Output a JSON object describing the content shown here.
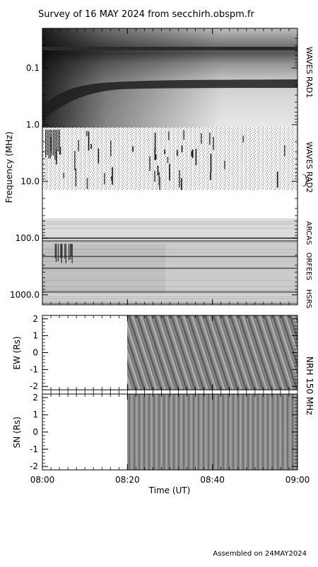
{
  "chart_data": {
    "type": "heatmap",
    "title": "Survey of 16 MAY 2024 from secchirh.obspm.fr",
    "footer": "Assembled on 24MAY2024",
    "spectrogram": {
      "ylabel": "Frequency (MHz)",
      "scale": "log",
      "ylim": [
        0.02,
        1500
      ],
      "yticks": [
        0.1,
        1.0,
        10.0,
        100.0,
        1000.0
      ],
      "ytick_labels": [
        "0.1",
        "1.0",
        "10.0",
        "100.0",
        "1000.0"
      ],
      "instruments": [
        {
          "name": "WAVES RAD1",
          "freq_range": [
            0.02,
            1.0
          ]
        },
        {
          "name": "WAVES RAD2",
          "freq_range": [
            1.0,
            14.0
          ]
        },
        {
          "name": "ARCAS",
          "freq_range": [
            40.0,
            100.0
          ]
        },
        {
          "name": "ORFEES",
          "freq_range": [
            100.0,
            1000.0
          ]
        },
        {
          "name": "HSRS",
          "freq_range": [
            1000.0,
            1500.0
          ]
        }
      ]
    },
    "nrh": {
      "label": "NRH 150 MHz",
      "panels": [
        {
          "ylabel": "EW (Rs)",
          "ylim": [
            -2.2,
            2.2
          ],
          "yticks": [
            2,
            1,
            0,
            -1,
            -2
          ],
          "ytick_labels": [
            "2",
            "1",
            "0",
            "-1",
            "-2"
          ]
        },
        {
          "ylabel": "SN (Rs)",
          "ylim": [
            -2.2,
            2.2
          ],
          "yticks": [
            2,
            1,
            0,
            -1,
            -2
          ],
          "ytick_labels": [
            "2",
            "1",
            "0",
            "-1",
            "-2"
          ]
        }
      ],
      "data_start": "08:20"
    },
    "xaxis": {
      "xlabel": "Time (UT)",
      "range": [
        "08:00",
        "09:00"
      ],
      "ticks": [
        "08:00",
        "08:20",
        "08:40",
        "09:00"
      ]
    }
  }
}
